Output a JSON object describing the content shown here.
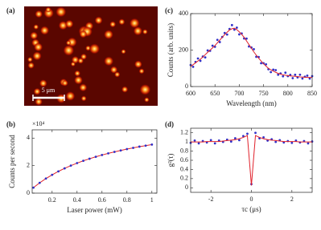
{
  "chart_data": [
    {
      "type": "image",
      "label": "(a)",
      "scale_bar": "5 μm"
    },
    {
      "type": "line",
      "label": "(b)",
      "y_multiplier": "×10⁴",
      "xlabel": "Laser power (mW)",
      "ylabel": "Counts per second",
      "xlim": [
        0.04,
        1.04
      ],
      "ylim": [
        0,
        4.6
      ],
      "xticks": [
        0.2,
        0.4,
        0.6,
        0.8,
        1
      ],
      "yticks": [
        0,
        2,
        4
      ],
      "x": [
        0.05,
        0.1,
        0.15,
        0.2,
        0.25,
        0.3,
        0.35,
        0.4,
        0.45,
        0.5,
        0.55,
        0.6,
        0.65,
        0.7,
        0.75,
        0.8,
        0.85,
        0.9,
        0.95,
        1.0
      ],
      "series": [
        {
          "color": "#e0202a",
          "mode": "line",
          "values": [
            0.4,
            0.75,
            1.06,
            1.33,
            1.58,
            1.8,
            2.0,
            2.18,
            2.35,
            2.5,
            2.64,
            2.77,
            2.89,
            3.0,
            3.1,
            3.2,
            3.29,
            3.38,
            3.45,
            3.53
          ]
        },
        {
          "color": "#3030c8",
          "mode": "markers",
          "values": [
            0.4,
            0.75,
            1.06,
            1.33,
            1.58,
            1.8,
            2.0,
            2.18,
            2.35,
            2.5,
            2.64,
            2.77,
            2.89,
            3.0,
            3.1,
            3.2,
            3.29,
            3.38,
            3.45,
            3.53
          ]
        }
      ]
    },
    {
      "type": "line",
      "label": "(c)",
      "xlabel": "Wavelength (nm)",
      "ylabel": "Counts (arb. units)",
      "xlim": [
        600,
        850
      ],
      "ylim": [
        0,
        400
      ],
      "xticks": [
        600,
        650,
        700,
        750,
        800,
        850
      ],
      "yticks": [
        0,
        200,
        400
      ],
      "x": [
        600,
        605,
        610,
        615,
        620,
        625,
        630,
        635,
        640,
        645,
        650,
        655,
        660,
        665,
        670,
        675,
        680,
        685,
        690,
        695,
        700,
        705,
        710,
        715,
        720,
        725,
        730,
        735,
        740,
        745,
        750,
        755,
        760,
        765,
        770,
        775,
        780,
        785,
        790,
        795,
        800,
        805,
        810,
        815,
        820,
        825,
        830,
        835,
        840,
        845,
        850
      ],
      "series": [
        {
          "color": "#3030c8",
          "mode": "markers",
          "values": [
            118,
            108,
            135,
            154,
            141,
            165,
            160,
            198,
            196,
            224,
            218,
            256,
            244,
            272,
            294,
            285,
            316,
            337,
            312,
            323,
            286,
            291,
            264,
            263,
            220,
            214,
            205,
            163,
            162,
            128,
            128,
            122,
            95,
            79,
            93,
            90,
            65,
            72,
            56,
            76,
            57,
            64,
            46,
            65,
            50,
            65,
            44,
            54,
            60,
            44,
            57
          ]
        },
        {
          "color": "#e0202a",
          "mode": "line",
          "values": [
            110,
            120,
            130,
            140,
            150,
            162,
            175,
            188,
            200,
            212,
            225,
            240,
            255,
            270,
            285,
            298,
            310,
            317,
            320,
            312,
            300,
            286,
            270,
            250,
            230,
            210,
            190,
            172,
            155,
            140,
            125,
            112,
            100,
            92,
            85,
            78,
            72,
            68,
            65,
            62,
            60,
            58,
            57,
            56,
            55,
            53,
            52,
            51,
            50,
            50,
            50
          ]
        }
      ]
    },
    {
      "type": "line",
      "label": "(d)",
      "xlabel": "τc (μs)",
      "ylabel": "g²(τ)",
      "xlim": [
        -3,
        3
      ],
      "ylim": [
        -0.1,
        1.3
      ],
      "xticks": [
        -2,
        0,
        2
      ],
      "yticks": [
        0,
        0.2,
        0.4,
        0.6,
        0.8,
        1,
        1.2
      ],
      "x": [
        -3,
        -2.8,
        -2.6,
        -2.4,
        -2.2,
        -2,
        -1.8,
        -1.6,
        -1.4,
        -1.2,
        -1,
        -0.8,
        -0.6,
        -0.4,
        -0.2,
        0,
        0.2,
        0.4,
        0.6,
        0.8,
        1,
        1.2,
        1.4,
        1.6,
        1.8,
        2,
        2.2,
        2.4,
        2.6,
        2.8,
        3
      ],
      "series": [
        {
          "color": "#3030c8",
          "mode": "markers",
          "values": [
            0.98,
            1.03,
            0.97,
            1.02,
            0.99,
            1.04,
            0.97,
            1.03,
            1.0,
            1.05,
            1.01,
            1.08,
            1.04,
            1.13,
            1.18,
            0.08,
            1.2,
            1.08,
            1.1,
            1.03,
            1.06,
            1.0,
            1.04,
            0.99,
            1.02,
            0.98,
            1.03,
            0.99,
            1.02,
            0.97,
            1.01
          ]
        },
        {
          "color": "#e0202a",
          "mode": "line",
          "values": [
            1.0,
            1.0,
            1.0,
            1.0,
            1.01,
            1.01,
            1.01,
            1.01,
            1.02,
            1.03,
            1.04,
            1.05,
            1.07,
            1.1,
            1.14,
            0.05,
            1.14,
            1.1,
            1.07,
            1.05,
            1.04,
            1.03,
            1.02,
            1.01,
            1.01,
            1.01,
            1.01,
            1.0,
            1.0,
            1.0,
            1.0
          ]
        }
      ]
    }
  ]
}
